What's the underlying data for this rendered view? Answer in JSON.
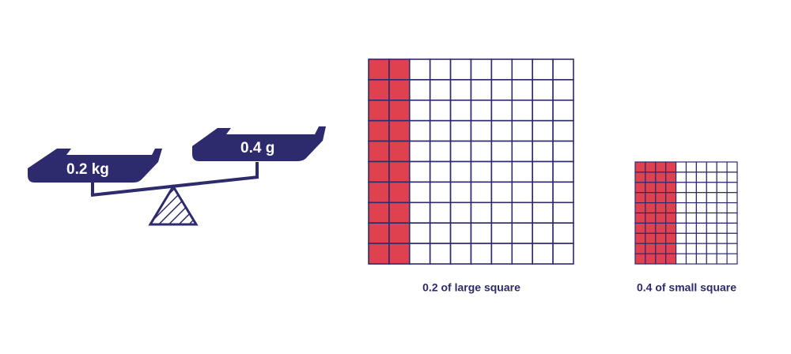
{
  "scale": {
    "left_pan": "0.2 kg",
    "right_pan": "0.4 g"
  },
  "large_square": {
    "label": "0.2 of large square",
    "shaded": 0.2
  },
  "small_square": {
    "label": "0.4 of small square",
    "shaded": 0.4
  }
}
